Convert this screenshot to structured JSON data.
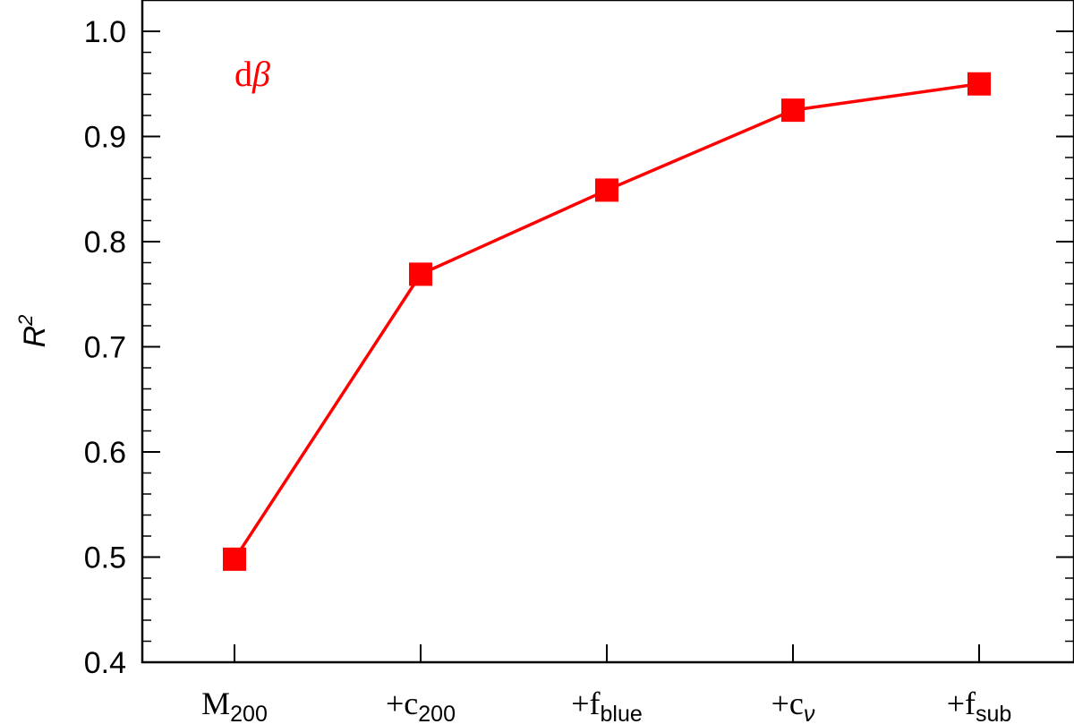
{
  "chart_data": {
    "type": "line",
    "categories": [
      {
        "main": "M",
        "sub": "200"
      },
      {
        "main": "+c",
        "sub": "200"
      },
      {
        "main": "+f",
        "sub": "blue"
      },
      {
        "main": "+c",
        "sub": "ν"
      },
      {
        "main": "+f",
        "sub": "sub"
      }
    ],
    "series": [
      {
        "values": [
          0.498,
          0.769,
          0.849,
          0.925,
          0.95
        ],
        "color": "#ff0000",
        "marker": "square"
      }
    ],
    "ylabel": "R",
    "ylabel_superscript": "2",
    "ylim": [
      0.4,
      1.0
    ],
    "yticks": [
      "0.4",
      "0.5",
      "0.6",
      "0.7",
      "0.8",
      "0.9",
      "1.0"
    ],
    "annotation": {
      "text": "d",
      "symbol": "β",
      "color": "#ff0000",
      "placement": "top-left"
    },
    "grid": false,
    "legend": "none"
  }
}
